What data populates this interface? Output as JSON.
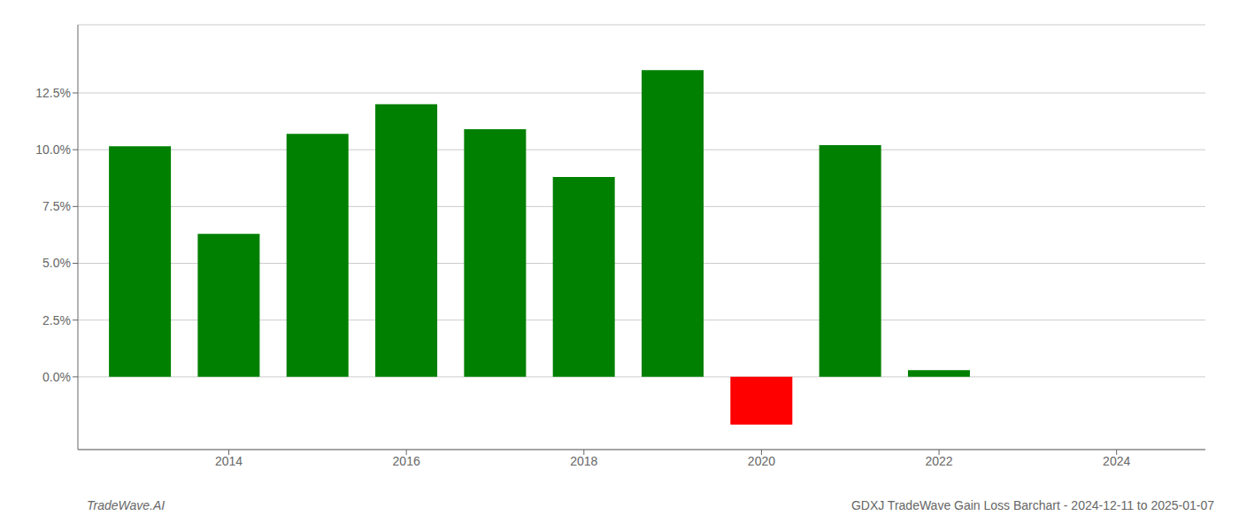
{
  "chart_data": {
    "type": "bar",
    "x": [
      2013,
      2014,
      2015,
      2016,
      2017,
      2018,
      2019,
      2020,
      2021,
      2022,
      2023,
      2024
    ],
    "values": [
      0.1015,
      0.063,
      0.107,
      0.12,
      0.109,
      0.088,
      0.135,
      -0.021,
      0.102,
      0.003,
      0.0,
      0.0
    ],
    "colors": [
      "#008000",
      "#008000",
      "#008000",
      "#008000",
      "#008000",
      "#008000",
      "#008000",
      "#ff0000",
      "#008000",
      "#008000",
      "#008000",
      "#008000"
    ],
    "xlim": [
      2012.3,
      2025.0
    ],
    "xticks": [
      2014,
      2016,
      2018,
      2020,
      2022,
      2024
    ],
    "ylim": [
      -0.032,
      0.155
    ],
    "yticks": [
      {
        "value": 0.0,
        "label": "0.0%"
      },
      {
        "value": 0.025,
        "label": "2.5%"
      },
      {
        "value": 0.05,
        "label": "5.0%"
      },
      {
        "value": 0.075,
        "label": "7.5%"
      },
      {
        "value": 0.1,
        "label": "10.0%"
      },
      {
        "value": 0.125,
        "label": "12.5%"
      }
    ],
    "grid": true,
    "annotations": [
      "TradeWave.AI",
      "GDXJ TradeWave Gain Loss Barchart - 2024-12-11 to 2025-01-07"
    ]
  }
}
